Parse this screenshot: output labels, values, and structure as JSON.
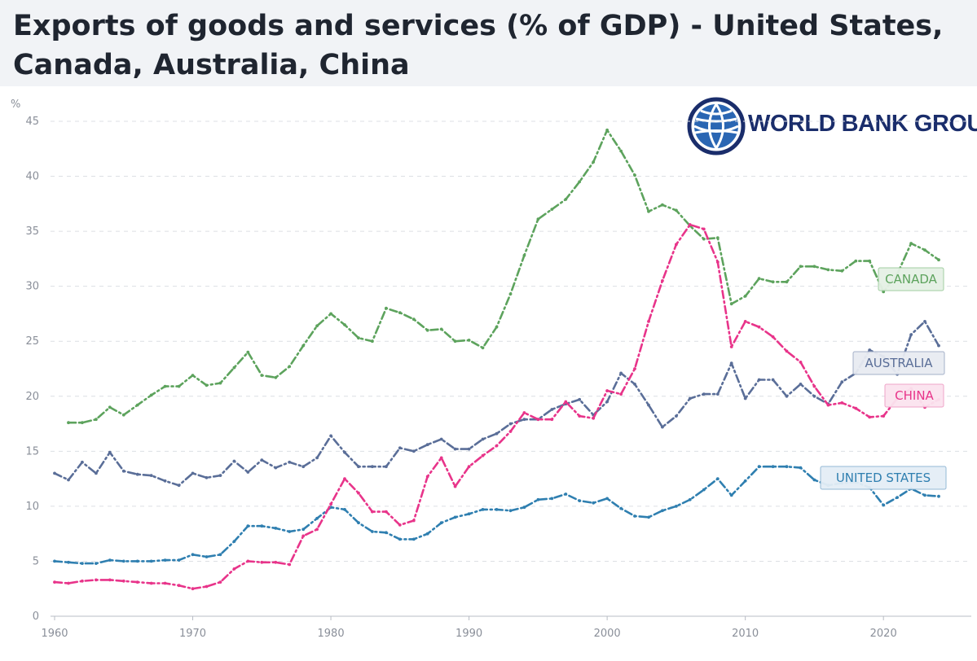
{
  "title": "Exports of goods and services (% of GDP) - United States, Canada, Australia, China",
  "logo": {
    "text": "WORLD BANK GROUP",
    "icon": "globe-icon",
    "color": "#1a2d6b"
  },
  "chart_data": {
    "type": "line",
    "title": "Exports of goods and services (% of GDP) - United States, Canada, Australia, China",
    "ylabel": "%",
    "xlabel": "",
    "xlim": [
      1960,
      2024
    ],
    "ylim": [
      0,
      45
    ],
    "xticks": [
      1960,
      1970,
      1980,
      1990,
      2000,
      2010,
      2020
    ],
    "yticks": [
      0,
      5,
      10,
      15,
      20,
      25,
      30,
      35,
      40,
      45
    ],
    "grid": "horizontal dashed",
    "legend": "inline labels at right",
    "series": [
      {
        "name": "UNITED STATES",
        "color": "#2f7fb0",
        "x": [
          1960,
          1961,
          1962,
          1963,
          1964,
          1965,
          1966,
          1967,
          1968,
          1969,
          1970,
          1971,
          1972,
          1973,
          1974,
          1975,
          1976,
          1977,
          1978,
          1979,
          1980,
          1981,
          1982,
          1983,
          1984,
          1985,
          1986,
          1987,
          1988,
          1989,
          1990,
          1991,
          1992,
          1993,
          1994,
          1995,
          1996,
          1997,
          1998,
          1999,
          2000,
          2001,
          2002,
          2003,
          2004,
          2005,
          2006,
          2007,
          2008,
          2009,
          2010,
          2011,
          2012,
          2013,
          2014,
          2015,
          2016,
          2017,
          2018,
          2019,
          2020,
          2021,
          2022,
          2023,
          2024
        ],
        "values": [
          5.0,
          4.9,
          4.8,
          4.8,
          5.1,
          5.0,
          5.0,
          5.0,
          5.1,
          5.1,
          5.6,
          5.4,
          5.6,
          6.8,
          8.2,
          8.2,
          8.0,
          7.7,
          7.9,
          8.9,
          9.9,
          9.7,
          8.5,
          7.7,
          7.6,
          7.0,
          7.0,
          7.5,
          8.5,
          9.0,
          9.3,
          9.7,
          9.7,
          9.6,
          9.9,
          10.6,
          10.7,
          11.1,
          10.5,
          10.3,
          10.7,
          9.8,
          9.1,
          9.0,
          9.6,
          10.0,
          10.6,
          11.5,
          12.5,
          11.0,
          12.3,
          13.6,
          13.6,
          13.6,
          13.5,
          12.4,
          11.9,
          12.1,
          12.2,
          11.7,
          10.1,
          10.8,
          11.6,
          11.0,
          10.9
        ]
      },
      {
        "name": "CANADA",
        "color": "#5da35d",
        "x": [
          1961,
          1962,
          1963,
          1964,
          1965,
          1966,
          1967,
          1968,
          1969,
          1970,
          1971,
          1972,
          1973,
          1974,
          1975,
          1976,
          1977,
          1978,
          1979,
          1980,
          1981,
          1982,
          1983,
          1984,
          1985,
          1986,
          1987,
          1988,
          1989,
          1990,
          1991,
          1992,
          1993,
          1994,
          1995,
          1996,
          1997,
          1998,
          1999,
          2000,
          2001,
          2002,
          2003,
          2004,
          2005,
          2006,
          2007,
          2008,
          2009,
          2010,
          2011,
          2012,
          2013,
          2014,
          2015,
          2016,
          2017,
          2018,
          2019,
          2020,
          2021,
          2022,
          2023,
          2024
        ],
        "values": [
          17.6,
          17.6,
          17.9,
          19.0,
          18.3,
          19.2,
          20.1,
          20.9,
          20.9,
          21.9,
          21.0,
          21.2,
          22.6,
          24.0,
          21.9,
          21.7,
          22.7,
          24.6,
          26.4,
          27.5,
          26.5,
          25.3,
          25.0,
          28.0,
          27.6,
          27.0,
          26.0,
          26.1,
          25.0,
          25.1,
          24.4,
          26.3,
          29.3,
          32.8,
          36.1,
          37.0,
          37.9,
          39.5,
          41.3,
          44.2,
          42.3,
          40.1,
          36.8,
          37.4,
          36.9,
          35.5,
          34.3,
          34.4,
          28.4,
          29.1,
          30.7,
          30.4,
          30.4,
          31.8,
          31.8,
          31.5,
          31.4,
          32.3,
          32.3,
          29.5,
          31.1,
          33.9,
          33.3,
          32.4
        ]
      },
      {
        "name": "AUSTRALIA",
        "color": "#5a6e98",
        "x": [
          1960,
          1961,
          1962,
          1963,
          1964,
          1965,
          1966,
          1967,
          1968,
          1969,
          1970,
          1971,
          1972,
          1973,
          1974,
          1975,
          1976,
          1977,
          1978,
          1979,
          1980,
          1981,
          1982,
          1983,
          1984,
          1985,
          1986,
          1987,
          1988,
          1989,
          1990,
          1991,
          1992,
          1993,
          1994,
          1995,
          1996,
          1997,
          1998,
          1999,
          2000,
          2001,
          2002,
          2003,
          2004,
          2005,
          2006,
          2007,
          2008,
          2009,
          2010,
          2011,
          2012,
          2013,
          2014,
          2015,
          2016,
          2017,
          2018,
          2019,
          2020,
          2021,
          2022,
          2023,
          2024
        ],
        "values": [
          13.0,
          12.4,
          14.0,
          13.0,
          14.9,
          13.2,
          12.9,
          12.8,
          12.3,
          11.9,
          13.0,
          12.6,
          12.8,
          14.1,
          13.1,
          14.2,
          13.5,
          14.0,
          13.6,
          14.4,
          16.4,
          14.9,
          13.6,
          13.6,
          13.6,
          15.3,
          15.0,
          15.6,
          16.1,
          15.2,
          15.2,
          16.1,
          16.6,
          17.5,
          17.9,
          17.9,
          18.8,
          19.3,
          19.7,
          18.3,
          19.5,
          22.1,
          21.1,
          19.2,
          17.2,
          18.2,
          19.8,
          20.2,
          20.2,
          23.0,
          19.8,
          21.5,
          21.5,
          20.0,
          21.1,
          20.0,
          19.3,
          21.3,
          22.1,
          24.2,
          23.6,
          22.0,
          25.6,
          26.8,
          24.6
        ]
      },
      {
        "name": "CHINA",
        "color": "#e8348a",
        "x": [
          1960,
          1961,
          1962,
          1963,
          1964,
          1965,
          1966,
          1967,
          1968,
          1969,
          1970,
          1971,
          1972,
          1973,
          1974,
          1975,
          1976,
          1977,
          1978,
          1979,
          1980,
          1981,
          1982,
          1983,
          1984,
          1985,
          1986,
          1987,
          1988,
          1989,
          1990,
          1991,
          1992,
          1993,
          1994,
          1995,
          1996,
          1997,
          1998,
          1999,
          2000,
          2001,
          2002,
          2003,
          2004,
          2005,
          2006,
          2007,
          2008,
          2009,
          2010,
          2011,
          2012,
          2013,
          2014,
          2015,
          2016,
          2017,
          2018,
          2019,
          2020,
          2021,
          2022,
          2023,
          2024
        ],
        "values": [
          3.1,
          3.0,
          3.2,
          3.3,
          3.3,
          3.2,
          3.1,
          3.0,
          3.0,
          2.8,
          2.5,
          2.7,
          3.1,
          4.3,
          5.0,
          4.9,
          4.9,
          4.7,
          7.3,
          7.9,
          10.2,
          12.5,
          11.2,
          9.5,
          9.5,
          8.3,
          8.7,
          12.7,
          14.4,
          11.8,
          13.6,
          14.6,
          15.5,
          16.8,
          18.5,
          17.9,
          17.9,
          19.5,
          18.2,
          18.0,
          20.5,
          20.2,
          22.5,
          26.8,
          30.5,
          33.8,
          35.6,
          35.2,
          32.2,
          24.5,
          26.8,
          26.3,
          25.4,
          24.1,
          23.1,
          20.9,
          19.2,
          19.4,
          18.9,
          18.1,
          18.2,
          19.8,
          20.7,
          19.0,
          19.7
        ]
      }
    ]
  }
}
